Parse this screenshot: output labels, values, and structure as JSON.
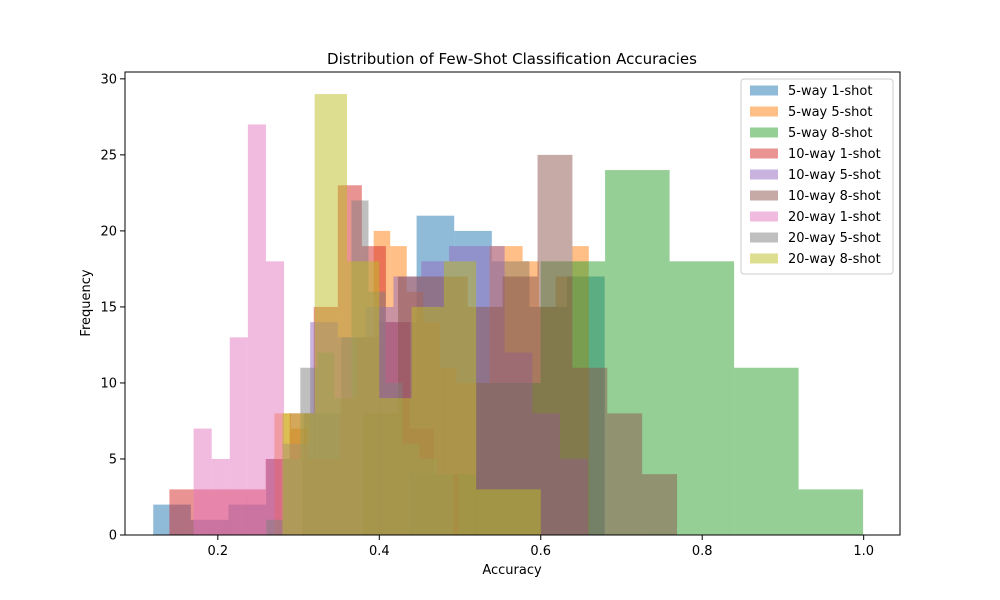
{
  "chart_data": {
    "type": "histogram",
    "title": "Distribution of Few-Shot Classification Accuracies",
    "xlabel": "Accuracy",
    "ylabel": "Frequency",
    "xlim": [
      0.085,
      1.045
    ],
    "ylim": [
      0,
      30.45
    ],
    "xticks": [
      0.2,
      0.4,
      0.6,
      0.8,
      1.0
    ],
    "xtick_labels": [
      "0.2",
      "0.4",
      "0.6",
      "0.8",
      "1.0"
    ],
    "yticks": [
      0,
      5,
      10,
      15,
      20,
      25,
      30
    ],
    "ytick_labels": [
      "0",
      "5",
      "10",
      "15",
      "20",
      "25",
      "30"
    ],
    "bar_opacity": 0.5,
    "legend_position": "top-right",
    "series": [
      {
        "name": "5-way 1-shot",
        "color": "#1f77b4",
        "bin_start": 0.12,
        "bin_width": 0.0466,
        "counts": [
          2,
          1,
          2,
          5,
          8,
          13,
          14,
          21,
          20,
          18,
          15,
          17
        ]
      },
      {
        "name": "5-way 5-shot",
        "color": "#ff7f0e",
        "bin_start": 0.27,
        "bin_width": 0.0205,
        "counts": [
          8,
          7,
          5,
          5,
          9,
          13,
          20,
          19,
          16,
          14,
          11,
          10,
          10,
          19,
          19,
          18,
          15,
          17,
          19
        ]
      },
      {
        "name": "5-way 8-shot",
        "color": "#2ca02c",
        "bin_start": 0.44,
        "bin_width": 0.0799,
        "counts": [
          4,
          10,
          18,
          24,
          18,
          11,
          3
        ]
      },
      {
        "name": "10-way 1-shot",
        "color": "#d62728",
        "bin_start": 0.14,
        "bin_width": 0.0298,
        "counts": [
          3,
          3,
          3,
          3,
          5,
          8,
          15,
          23,
          19,
          14,
          7,
          4
        ]
      },
      {
        "name": "10-way 5-shot",
        "color": "#9467bd",
        "bin_start": 0.28,
        "bin_width": 0.0344,
        "counts": [
          6,
          14,
          13,
          15,
          17,
          18,
          19,
          19,
          12,
          8,
          5
        ]
      },
      {
        "name": "10-way 8-shot",
        "color": "#8c564b",
        "bin_start": 0.38,
        "bin_width": 0.0432,
        "counts": [
          8,
          17,
          17,
          15,
          17,
          25,
          11,
          8,
          4
        ]
      },
      {
        "name": "20-way 1-shot",
        "color": "#e377c2",
        "bin_start": 0.17,
        "bin_width": 0.0224,
        "counts": [
          7,
          5,
          13,
          27,
          18,
          5
        ]
      },
      {
        "name": "20-way 5-shot",
        "color": "#7f7f7f",
        "bin_start": 0.26,
        "bin_width": 0.0211,
        "counts": [
          1,
          5,
          11,
          12,
          9,
          22,
          16,
          10,
          6,
          5,
          4
        ]
      },
      {
        "name": "20-way 8-shot",
        "color": "#bcbd22",
        "bin_start": 0.28,
        "bin_width": 0.04,
        "counts": [
          8,
          29,
          18,
          9,
          15,
          18,
          3,
          3
        ]
      }
    ]
  }
}
